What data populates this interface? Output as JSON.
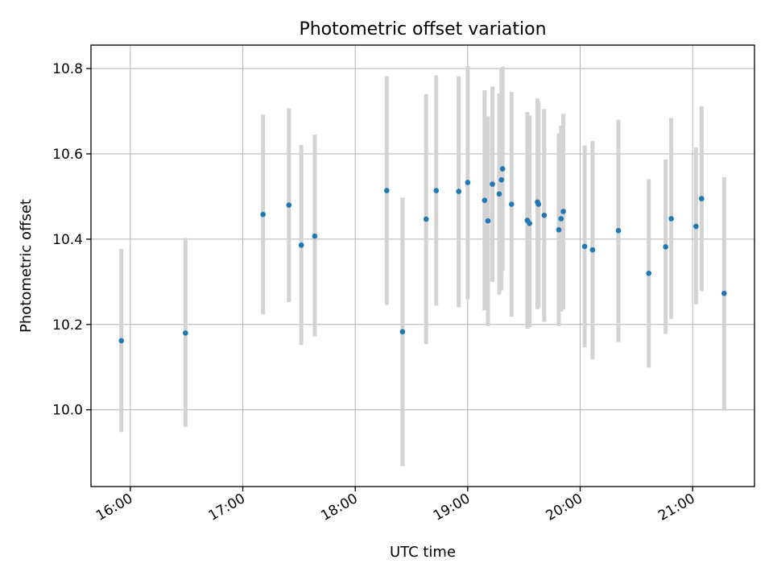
{
  "chart_data": {
    "type": "scatter",
    "title": "Photometric offset variation",
    "xlabel": "UTC time",
    "ylabel": "Photometric offset",
    "x_unit": "hours UTC",
    "xlim": [
      15.65,
      21.55
    ],
    "ylim": [
      9.82,
      10.855
    ],
    "x_ticks": [
      {
        "value": 16,
        "label": "16:00"
      },
      {
        "value": 17,
        "label": "17:00"
      },
      {
        "value": 18,
        "label": "18:00"
      },
      {
        "value": 19,
        "label": "19:00"
      },
      {
        "value": 20,
        "label": "20:00"
      },
      {
        "value": 21,
        "label": "21:00"
      }
    ],
    "y_ticks": [
      {
        "value": 10.0,
        "label": "10.0"
      },
      {
        "value": 10.2,
        "label": "10.2"
      },
      {
        "value": 10.4,
        "label": "10.4"
      },
      {
        "value": 10.6,
        "label": "10.6"
      },
      {
        "value": 10.8,
        "label": "10.8"
      }
    ],
    "grid": true,
    "point_color": "#1f77b4",
    "errorbar_color": "#d3d3d3",
    "points": [
      {
        "x": 15.92,
        "y": 10.162,
        "low": 9.948,
        "high": 10.377
      },
      {
        "x": 16.49,
        "y": 10.18,
        "low": 9.96,
        "high": 10.403
      },
      {
        "x": 17.18,
        "y": 10.458,
        "low": 10.224,
        "high": 10.692
      },
      {
        "x": 17.41,
        "y": 10.48,
        "low": 10.252,
        "high": 10.707
      },
      {
        "x": 17.52,
        "y": 10.386,
        "low": 10.152,
        "high": 10.621
      },
      {
        "x": 17.64,
        "y": 10.407,
        "low": 10.172,
        "high": 10.645
      },
      {
        "x": 18.28,
        "y": 10.514,
        "low": 10.246,
        "high": 10.782
      },
      {
        "x": 18.42,
        "y": 10.183,
        "low": 9.868,
        "high": 10.497
      },
      {
        "x": 18.63,
        "y": 10.447,
        "low": 10.154,
        "high": 10.74
      },
      {
        "x": 18.72,
        "y": 10.514,
        "low": 10.244,
        "high": 10.784
      },
      {
        "x": 18.92,
        "y": 10.512,
        "low": 10.24,
        "high": 10.782
      },
      {
        "x": 19.0,
        "y": 10.533,
        "low": 10.259,
        "high": 10.806
      },
      {
        "x": 19.15,
        "y": 10.491,
        "low": 10.233,
        "high": 10.749
      },
      {
        "x": 19.18,
        "y": 10.443,
        "low": 10.196,
        "high": 10.688
      },
      {
        "x": 19.22,
        "y": 10.529,
        "low": 10.3,
        "high": 10.758
      },
      {
        "x": 19.28,
        "y": 10.506,
        "low": 10.27,
        "high": 10.742
      },
      {
        "x": 19.3,
        "y": 10.539,
        "low": 10.28,
        "high": 10.8
      },
      {
        "x": 19.31,
        "y": 10.565,
        "low": 10.326,
        "high": 10.804
      },
      {
        "x": 19.39,
        "y": 10.482,
        "low": 10.218,
        "high": 10.745
      },
      {
        "x": 19.53,
        "y": 10.444,
        "low": 10.19,
        "high": 10.698
      },
      {
        "x": 19.55,
        "y": 10.437,
        "low": 10.193,
        "high": 10.69
      },
      {
        "x": 19.62,
        "y": 10.487,
        "low": 10.236,
        "high": 10.73
      },
      {
        "x": 19.63,
        "y": 10.482,
        "low": 10.24,
        "high": 10.722
      },
      {
        "x": 19.68,
        "y": 10.456,
        "low": 10.206,
        "high": 10.705
      },
      {
        "x": 19.81,
        "y": 10.422,
        "low": 10.196,
        "high": 10.648
      },
      {
        "x": 19.83,
        "y": 10.448,
        "low": 10.23,
        "high": 10.666
      },
      {
        "x": 19.85,
        "y": 10.465,
        "low": 10.235,
        "high": 10.694
      },
      {
        "x": 20.04,
        "y": 10.383,
        "low": 10.146,
        "high": 10.62
      },
      {
        "x": 20.11,
        "y": 10.375,
        "low": 10.119,
        "high": 10.63
      },
      {
        "x": 20.34,
        "y": 10.42,
        "low": 10.159,
        "high": 10.68
      },
      {
        "x": 20.61,
        "y": 10.32,
        "low": 10.099,
        "high": 10.541
      },
      {
        "x": 20.76,
        "y": 10.382,
        "low": 10.178,
        "high": 10.587
      },
      {
        "x": 20.81,
        "y": 10.448,
        "low": 10.213,
        "high": 10.684
      },
      {
        "x": 21.03,
        "y": 10.43,
        "low": 10.247,
        "high": 10.615
      },
      {
        "x": 21.08,
        "y": 10.495,
        "low": 10.278,
        "high": 10.712
      },
      {
        "x": 21.28,
        "y": 10.273,
        "low": 10.0,
        "high": 10.545
      }
    ]
  }
}
